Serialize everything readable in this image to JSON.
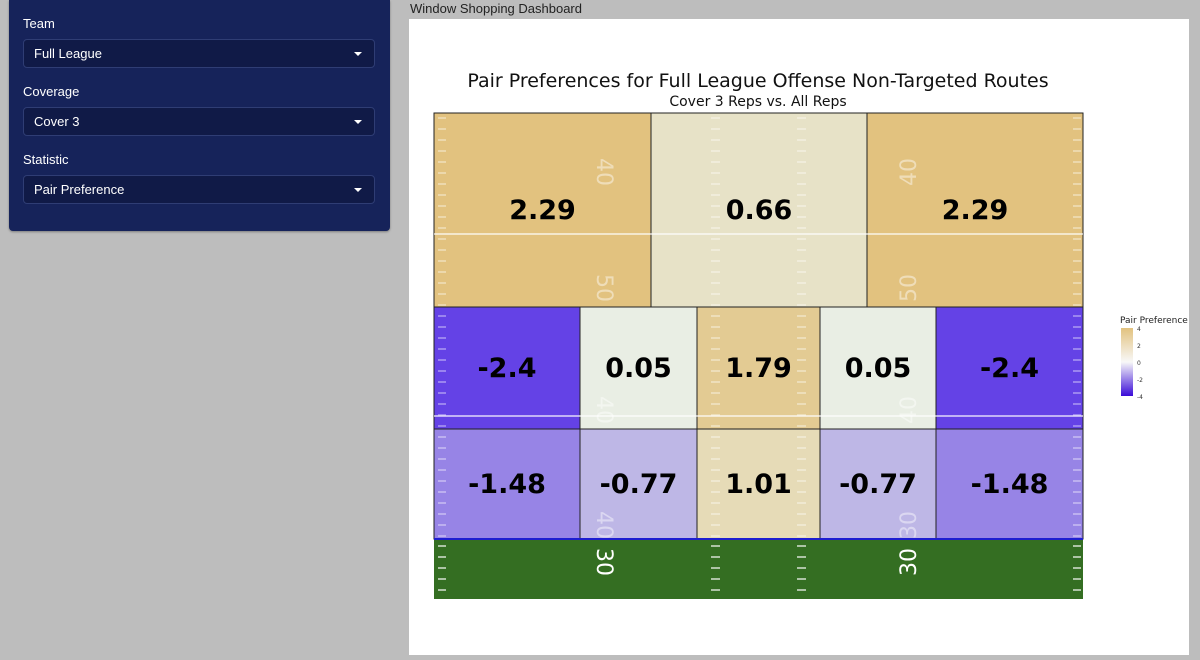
{
  "app": {
    "title": "Window Shopping Dashboard"
  },
  "controls": {
    "team": {
      "label": "Team",
      "value": "Full League"
    },
    "coverage": {
      "label": "Coverage",
      "value": "Cover 3"
    },
    "statistic": {
      "label": "Statistic",
      "value": "Pair Preference"
    }
  },
  "colors": {
    "sidebar_bg": "#16235a",
    "positive": "#e2c27f",
    "neutral": "#e9efe6",
    "negative": "#5028e6",
    "turf": "#346e22"
  },
  "chart_data": {
    "type": "heatmap",
    "title": "Pair Preferences for Full League Offense Non-Targeted Routes",
    "subtitle": "Cover 3 Reps vs. All Reps",
    "legend": {
      "title": "Pair Preference",
      "ticks": [
        4,
        2,
        0,
        -2,
        -4
      ],
      "range": [
        -4,
        4
      ],
      "position": "right"
    },
    "field_markings": [
      "40",
      "50",
      "40",
      "40",
      "50",
      "40",
      "40",
      "30",
      "30",
      "30"
    ],
    "zones": [
      {
        "row": "deep",
        "col": "left",
        "value": 2.29,
        "label": "2.29"
      },
      {
        "row": "deep",
        "col": "middle",
        "value": 0.66,
        "label": "0.66"
      },
      {
        "row": "deep",
        "col": "right",
        "value": 2.29,
        "label": "2.29"
      },
      {
        "row": "intermediate",
        "col": "left-outside",
        "value": -2.4,
        "label": "-2.4"
      },
      {
        "row": "intermediate",
        "col": "left-inside",
        "value": 0.05,
        "label": "0.05"
      },
      {
        "row": "intermediate",
        "col": "middle",
        "value": 1.79,
        "label": "1.79"
      },
      {
        "row": "intermediate",
        "col": "right-inside",
        "value": 0.05,
        "label": "0.05"
      },
      {
        "row": "intermediate",
        "col": "right-outside",
        "value": -2.4,
        "label": "-2.4"
      },
      {
        "row": "short",
        "col": "left-outside",
        "value": -1.48,
        "label": "-1.48"
      },
      {
        "row": "short",
        "col": "left-inside",
        "value": -0.77,
        "label": "-0.77"
      },
      {
        "row": "short",
        "col": "middle",
        "value": 1.01,
        "label": "1.01"
      },
      {
        "row": "short",
        "col": "right-inside",
        "value": -0.77,
        "label": "-0.77"
      },
      {
        "row": "short",
        "col": "right-outside",
        "value": -1.48,
        "label": "-1.48"
      }
    ]
  }
}
